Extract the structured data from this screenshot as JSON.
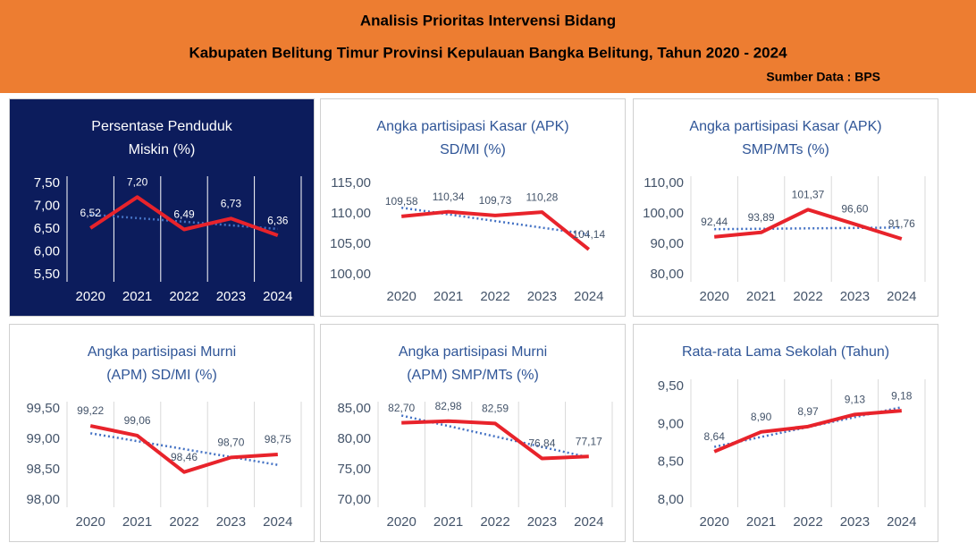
{
  "header": {
    "title": "Analisis Prioritas Intervensi Bidang",
    "subtitle": "Kabupaten Belitung Timur Provinsi Kepulauan Bangka Belitung, Tahun 2020 - 2024",
    "source": "Sumber Data : BPS"
  },
  "chart_data": [
    {
      "type": "line",
      "theme": "dark",
      "vgrid": true,
      "trendline": true,
      "trend_color": "#4472c4",
      "color": "#e8232b",
      "title": [
        "Persentase Penduduk",
        "Miskin (%)"
      ],
      "categories": [
        "2020",
        "2021",
        "2022",
        "2023",
        "2024"
      ],
      "values": [
        6.52,
        7.2,
        6.49,
        6.73,
        6.36
      ],
      "value_labels": [
        "6,52",
        "7,20",
        "6,49",
        "6,73",
        "6,36"
      ],
      "ylim": [
        5.5,
        7.5
      ],
      "yticks": [
        {
          "value": 5.5,
          "label": "5,50"
        },
        {
          "value": 6,
          "label": "6,00"
        },
        {
          "value": 6.5,
          "label": "6,50"
        },
        {
          "value": 7,
          "label": "7,00"
        },
        {
          "value": 7.5,
          "label": "7,50"
        }
      ]
    },
    {
      "type": "line",
      "theme": "light",
      "vgrid": false,
      "trendline": true,
      "trend_color": "#4472c4",
      "color": "#e8232b",
      "title": [
        "Angka partisipasi Kasar (APK)",
        "SD/MI (%)"
      ],
      "categories": [
        "2020",
        "2021",
        "2022",
        "2023",
        "2024"
      ],
      "values": [
        109.58,
        110.34,
        109.73,
        110.28,
        104.14
      ],
      "value_labels": [
        "109,58",
        "110,34",
        "109,73",
        "110,28",
        "104,14"
      ],
      "ylim": [
        100,
        115
      ],
      "yticks": [
        {
          "value": 100,
          "label": "100,00"
        },
        {
          "value": 105,
          "label": "105,00"
        },
        {
          "value": 110,
          "label": "110,00"
        },
        {
          "value": 115,
          "label": "115,00"
        }
      ]
    },
    {
      "type": "line",
      "theme": "light",
      "vgrid": true,
      "trendline": true,
      "trend_color": "#4472c4",
      "color": "#e8232b",
      "title": [
        "Angka partisipasi Kasar (APK)",
        "SMP/MTs (%)"
      ],
      "categories": [
        "2020",
        "2021",
        "2022",
        "2023",
        "2024"
      ],
      "values": [
        92.44,
        93.89,
        101.37,
        96.6,
        91.76
      ],
      "value_labels": [
        "92,44",
        "93,89",
        "101,37",
        "96,60",
        "91,76"
      ],
      "ylim": [
        80,
        110
      ],
      "yticks": [
        {
          "value": 80,
          "label": "80,00"
        },
        {
          "value": 90,
          "label": "90,00"
        },
        {
          "value": 100,
          "label": "100,00"
        },
        {
          "value": 110,
          "label": "110,00"
        }
      ]
    },
    {
      "type": "line",
      "theme": "light",
      "vgrid": true,
      "trendline": true,
      "trend_color": "#4472c4",
      "color": "#e8232b",
      "title": [
        "Angka partisipasi Murni",
        "(APM) SD/MI (%)"
      ],
      "categories": [
        "2020",
        "2021",
        "2022",
        "2023",
        "2024"
      ],
      "values": [
        99.22,
        99.06,
        98.46,
        98.7,
        98.75
      ],
      "value_labels": [
        "99,22",
        "99,06",
        "98,46",
        "98,70",
        "98,75"
      ],
      "ylim": [
        98,
        99.5
      ],
      "yticks": [
        {
          "value": 98,
          "label": "98,00"
        },
        {
          "value": 98.5,
          "label": "98,50"
        },
        {
          "value": 99,
          "label": "99,00"
        },
        {
          "value": 99.5,
          "label": "99,50"
        }
      ]
    },
    {
      "type": "line",
      "theme": "light",
      "vgrid": true,
      "trendline": true,
      "trend_color": "#4472c4",
      "color": "#e8232b",
      "title": [
        "Angka partisipasi Murni",
        "(APM) SMP/MTs (%)"
      ],
      "categories": [
        "2020",
        "2021",
        "2022",
        "2023",
        "2024"
      ],
      "values": [
        82.7,
        82.98,
        82.59,
        76.84,
        77.17
      ],
      "value_labels": [
        "82,70",
        "82,98",
        "82,59",
        "76,84",
        "77,17"
      ],
      "ylim": [
        70,
        85
      ],
      "yticks": [
        {
          "value": 70,
          "label": "70,00"
        },
        {
          "value": 75,
          "label": "75,00"
        },
        {
          "value": 80,
          "label": "80,00"
        },
        {
          "value": 85,
          "label": "85,00"
        }
      ]
    },
    {
      "type": "line",
      "theme": "light",
      "vgrid": true,
      "trendline": true,
      "trend_color": "#4472c4",
      "color": "#e8232b",
      "title": [
        "Rata-rata Lama Sekolah (Tahun)"
      ],
      "categories": [
        "2020",
        "2021",
        "2022",
        "2023",
        "2024"
      ],
      "values": [
        8.64,
        8.9,
        8.97,
        9.13,
        9.18
      ],
      "value_labels": [
        "8,64",
        "8,90",
        "8,97",
        "9,13",
        "9,18"
      ],
      "ylim": [
        8,
        9.5
      ],
      "yticks": [
        {
          "value": 8,
          "label": "8,00"
        },
        {
          "value": 8.5,
          "label": "8,50"
        },
        {
          "value": 9,
          "label": "9,00"
        },
        {
          "value": 9.5,
          "label": "9,50"
        }
      ]
    }
  ]
}
